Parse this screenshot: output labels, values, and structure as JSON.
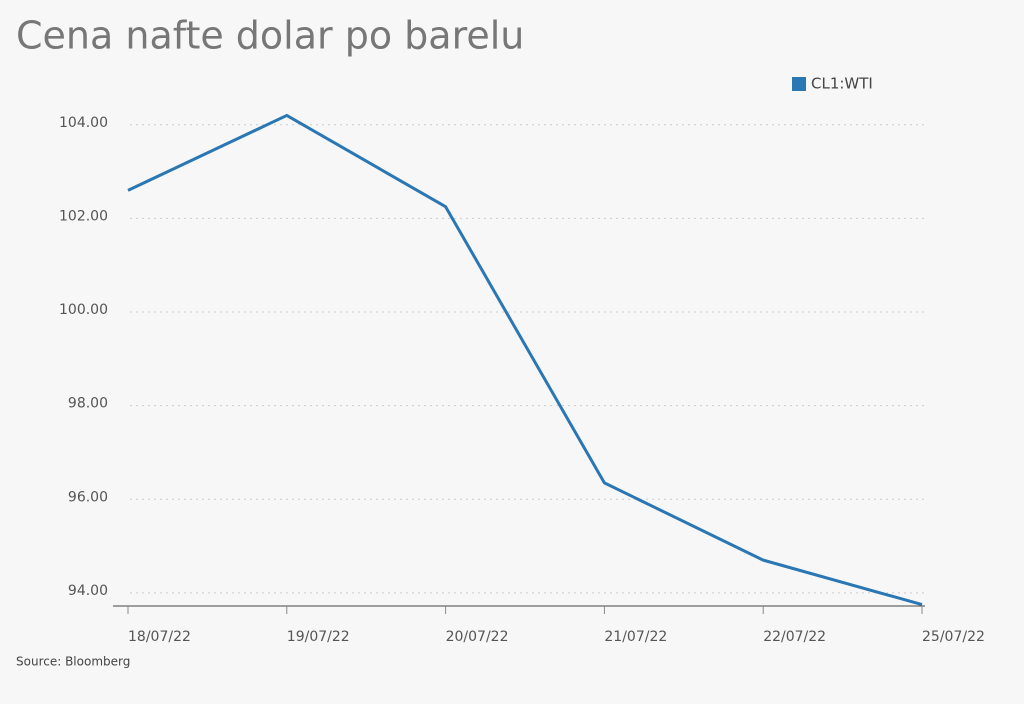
{
  "chart_data": {
    "type": "line",
    "title": "Cena nafte dolar po barelu",
    "source": "Source: Bloomberg",
    "categories": [
      "18/07/22",
      "19/07/22",
      "20/07/22",
      "21/07/22",
      "22/07/22",
      "25/07/22"
    ],
    "series": [
      {
        "name": "CL1:WTI",
        "color": "#2a77b4",
        "values": [
          102.6,
          104.2,
          102.25,
          96.35,
          94.7,
          93.75
        ]
      }
    ],
    "ylim": [
      93.72,
      105
    ],
    "yticks": [
      {
        "value": 94,
        "label": "94.00"
      },
      {
        "value": 96,
        "label": "96.00"
      },
      {
        "value": 98,
        "label": "98.00"
      },
      {
        "value": 100,
        "label": "100.00"
      },
      {
        "value": 102,
        "label": "102.00"
      },
      {
        "value": 104,
        "label": "104.00"
      }
    ],
    "grid": true,
    "legend": "top-right"
  }
}
